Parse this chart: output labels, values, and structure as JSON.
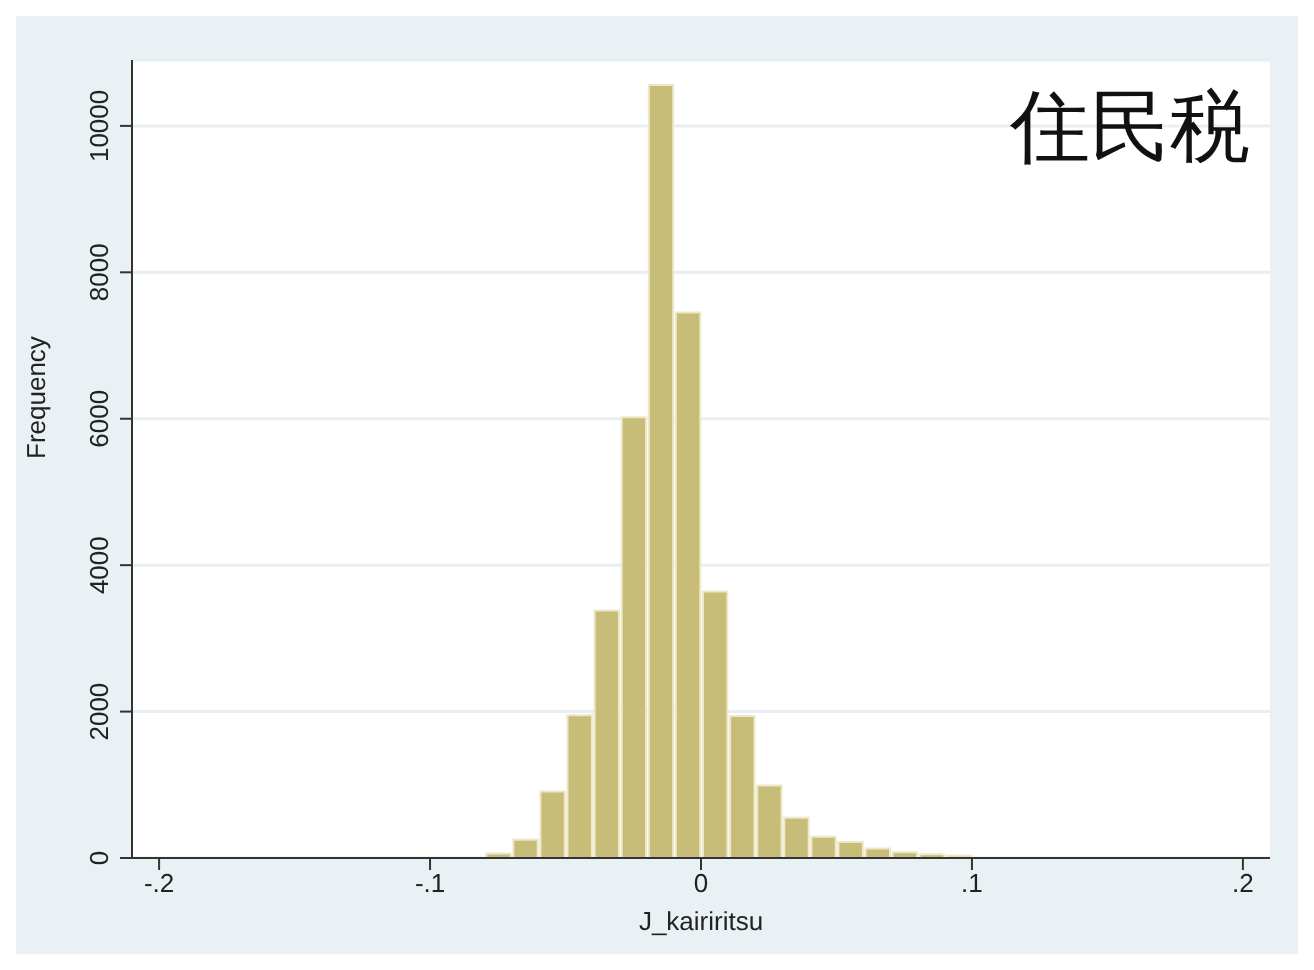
{
  "chart_data": {
    "type": "histogram",
    "xlabel": "J_kairiritsu",
    "ylabel": "Frequency",
    "annotations": [
      "住民税"
    ],
    "bins": [
      -0.2,
      -0.19,
      -0.18,
      -0.17,
      -0.16,
      -0.15,
      -0.14,
      -0.13,
      -0.12,
      -0.11,
      -0.1,
      -0.09,
      -0.08,
      -0.07,
      -0.06,
      -0.05,
      -0.04,
      -0.03,
      -0.02,
      -0.01,
      0,
      0.01,
      0.02,
      0.03,
      0.04,
      0.05,
      0.06,
      0.07,
      0.08,
      0.09,
      0.1,
      0.11,
      0.12,
      0.13,
      0.14,
      0.15,
      0.16,
      0.17,
      0.18,
      0.19,
      0.2
    ],
    "values": [
      0,
      0,
      0,
      0,
      0,
      0,
      0,
      0,
      0,
      0,
      null,
      null,
      60,
      250,
      910,
      1950,
      3380,
      6020,
      10560,
      7450,
      3640,
      1940,
      990,
      550,
      290,
      220,
      130,
      80,
      50,
      30,
      null,
      null,
      null,
      null,
      0,
      0,
      0,
      0,
      0,
      0
    ],
    "color": "#c8bd78",
    "xlim": [
      -0.21,
      0.21
    ],
    "xticks": [
      {
        "value": -0.2,
        "label": "-.2"
      },
      {
        "value": -0.1,
        "label": "-.1"
      },
      0,
      {
        "value": 0.1,
        "label": ".1"
      },
      {
        "value": 0.2,
        "label": ".2"
      }
    ],
    "ylim": [
      0,
      10900
    ],
    "yticks": [
      0,
      2000,
      4000,
      6000,
      8000,
      10000
    ],
    "grid": "y"
  }
}
